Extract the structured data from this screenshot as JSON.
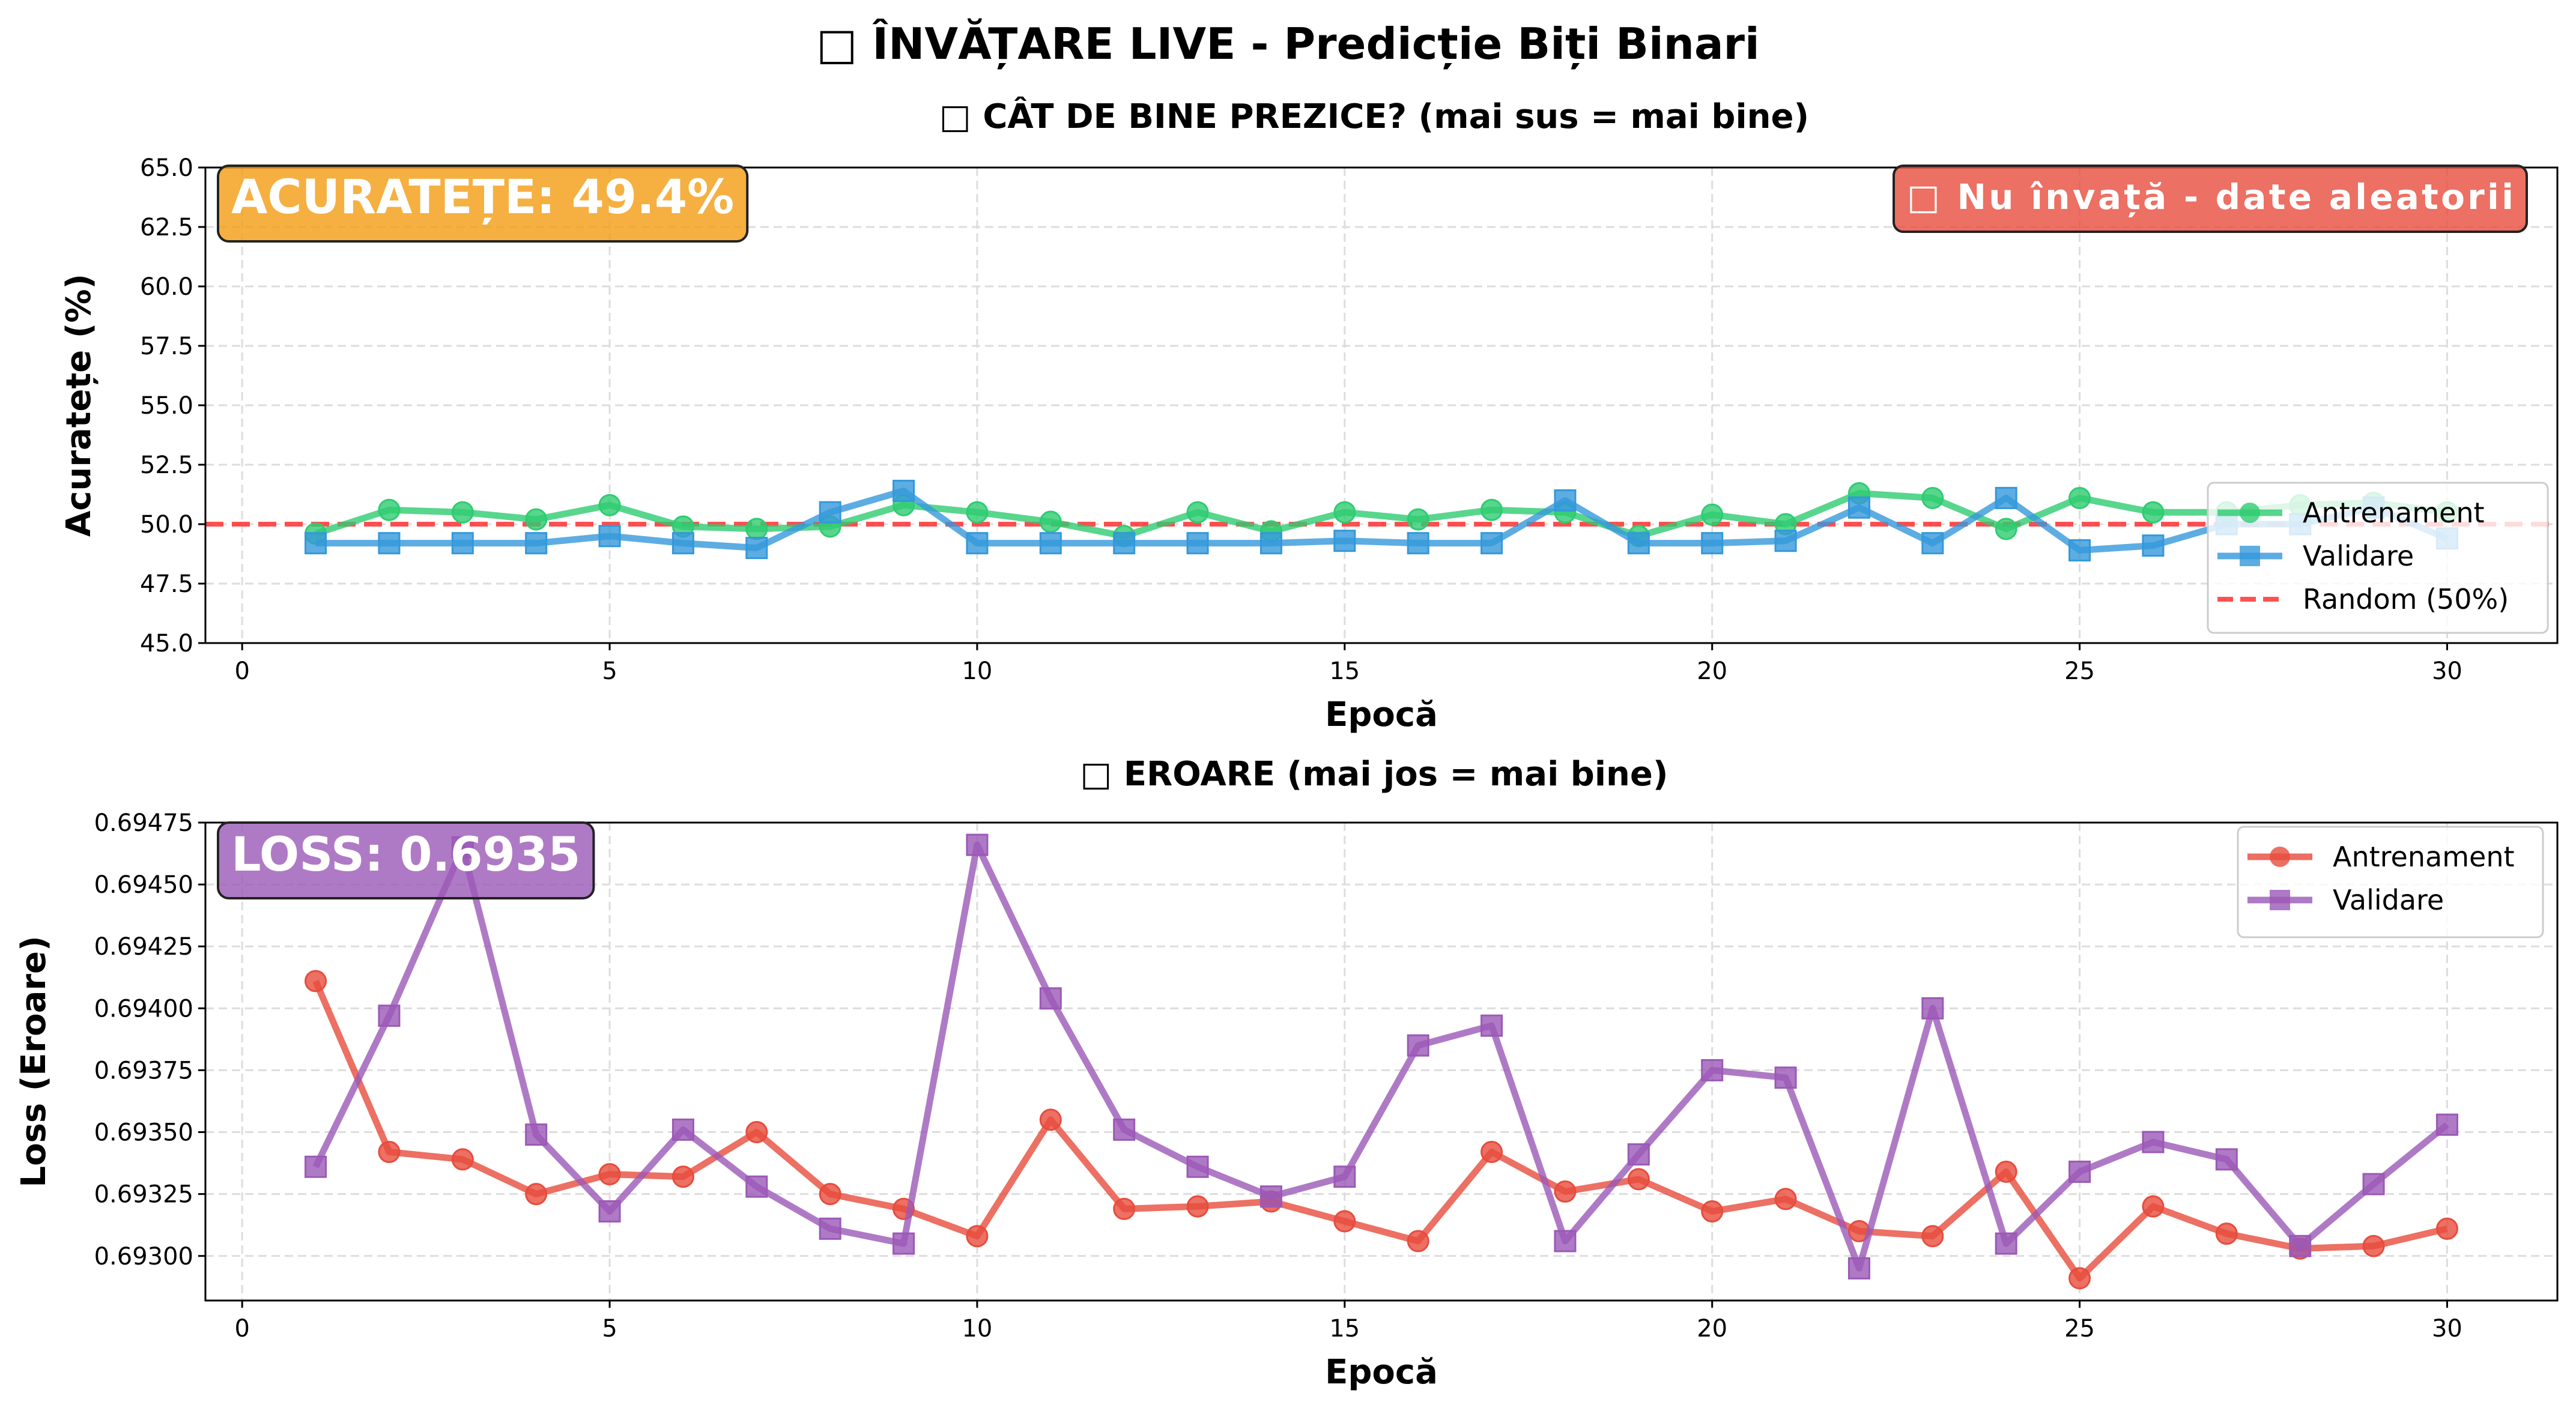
{
  "figure": {
    "suptitle": "□ ÎNVĂȚARE LIVE - Predicție Biți Binari"
  },
  "chart_data": [
    {
      "type": "line",
      "title": "□ CÂT DE BINE PREZICE? (mai sus = mai bine)",
      "xlabel": "Epocă",
      "ylabel": "Acuratețe (%)",
      "xlim": [
        -0.5,
        31.5
      ],
      "ylim": [
        45.0,
        65.0
      ],
      "xticks": [
        0,
        5,
        10,
        15,
        20,
        25,
        30
      ],
      "yticks": [
        "45.0",
        "47.5",
        "50.0",
        "52.5",
        "55.0",
        "57.5",
        "60.0",
        "62.5",
        "65.0"
      ],
      "grid": true,
      "legend_position": "lower-right",
      "x": [
        1,
        2,
        3,
        4,
        5,
        6,
        7,
        8,
        9,
        10,
        11,
        12,
        13,
        14,
        15,
        16,
        17,
        18,
        19,
        20,
        21,
        22,
        23,
        24,
        25,
        26,
        27,
        28,
        29,
        30
      ],
      "series": [
        {
          "name": "Antrenament",
          "color": "#2ecc71",
          "marker": "circle",
          "values": [
            49.6,
            50.6,
            50.5,
            50.2,
            50.8,
            49.9,
            49.8,
            49.9,
            50.8,
            50.5,
            50.1,
            49.5,
            50.5,
            49.7,
            50.5,
            50.2,
            50.6,
            50.5,
            49.5,
            50.4,
            50.0,
            51.3,
            51.1,
            49.8,
            51.1,
            50.5,
            50.5,
            50.8,
            50.9,
            50.5
          ]
        },
        {
          "name": "Validare",
          "color": "#3498db",
          "marker": "square",
          "values": [
            49.2,
            49.2,
            49.2,
            49.2,
            49.5,
            49.2,
            49.0,
            50.5,
            51.4,
            49.2,
            49.2,
            49.2,
            49.2,
            49.2,
            49.3,
            49.2,
            49.2,
            51.0,
            49.2,
            49.2,
            49.3,
            50.7,
            49.2,
            51.1,
            48.9,
            49.1,
            50.0,
            50.0,
            50.7,
            49.4
          ]
        },
        {
          "name": "Random (50%)",
          "color": "#ff3333",
          "style": "dashed",
          "hline": 50.0
        }
      ],
      "badges": {
        "main": {
          "text": "ACURATEȚE: 49.4%",
          "color": "#f39c12"
        },
        "status": {
          "text": "□ Nu învață - date aleatorii",
          "color": "#e74c3c"
        }
      }
    },
    {
      "type": "line",
      "title": "□ EROARE (mai jos = mai bine)",
      "xlabel": "Epocă",
      "ylabel": "Loss (Eroare)",
      "xlim": [
        -0.5,
        31.5
      ],
      "ylim": [
        0.69282,
        0.69475
      ],
      "xticks": [
        0,
        5,
        10,
        15,
        20,
        25,
        30
      ],
      "yticks": [
        "0.69300",
        "0.69325",
        "0.69350",
        "0.69375",
        "0.69400",
        "0.69425",
        "0.69450",
        "0.69475"
      ],
      "grid": true,
      "legend_position": "upper-right",
      "x": [
        1,
        2,
        3,
        4,
        5,
        6,
        7,
        8,
        9,
        10,
        11,
        12,
        13,
        14,
        15,
        16,
        17,
        18,
        19,
        20,
        21,
        22,
        23,
        24,
        25,
        26,
        27,
        28,
        29,
        30
      ],
      "series": [
        {
          "name": "Antrenament",
          "color": "#e74c3c",
          "marker": "circle",
          "values": [
            0.69411,
            0.69342,
            0.69339,
            0.69325,
            0.69333,
            0.69332,
            0.6935,
            0.69325,
            0.69319,
            0.69308,
            0.69355,
            0.69319,
            0.6932,
            0.69322,
            0.69314,
            0.69306,
            0.69342,
            0.69326,
            0.69331,
            0.69318,
            0.69323,
            0.6931,
            0.69308,
            0.69334,
            0.69291,
            0.6932,
            0.69309,
            0.69303,
            0.69304,
            0.69311
          ]
        },
        {
          "name": "Validare",
          "color": "#9b59b6",
          "marker": "square",
          "values": [
            0.69336,
            0.69397,
            0.69465,
            0.69349,
            0.69318,
            0.69351,
            0.69328,
            0.69311,
            0.69305,
            0.69466,
            0.69404,
            0.69351,
            0.69336,
            0.69324,
            0.69332,
            0.69385,
            0.69393,
            0.69306,
            0.69341,
            0.69375,
            0.69372,
            0.69295,
            0.694,
            0.69305,
            0.69334,
            0.69346,
            0.69339,
            0.69304,
            0.69329,
            0.69353
          ]
        }
      ],
      "badges": {
        "main": {
          "text": "LOSS: 0.6935",
          "color": "#9b59b6"
        }
      }
    }
  ]
}
